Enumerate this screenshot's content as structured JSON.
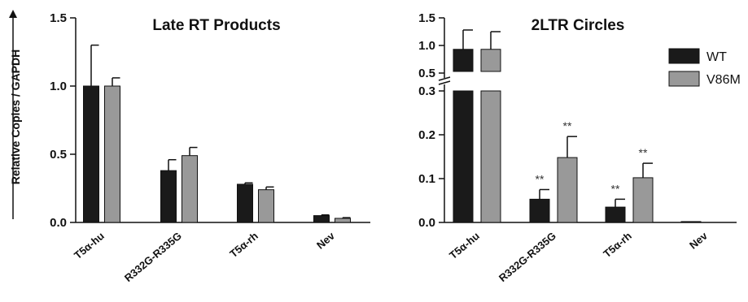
{
  "colors": {
    "wt": "#1a1a1a",
    "v86m": "#999999",
    "axis": "#111111"
  },
  "legend": {
    "items": [
      {
        "label": "WT",
        "color": "#1a1a1a"
      },
      {
        "label": "V86M",
        "color": "#999999"
      }
    ],
    "placement": "top-right of right panel"
  },
  "y_axis_label": "Relative Copies / GAPDH",
  "chart_data": [
    {
      "type": "bar",
      "title": "Late RT Products",
      "ylabel": "Relative Copies / GAPDH",
      "categories": [
        "T5α-hu",
        "R332G-R335G",
        "T5α-rh",
        "Nev"
      ],
      "ylim": [
        0,
        1.5
      ],
      "yticks": [
        "0.0",
        "0.5",
        "1.0",
        "1.5"
      ],
      "series": [
        {
          "name": "WT",
          "values": [
            1.0,
            0.38,
            0.28,
            0.05
          ],
          "errors": [
            0.3,
            0.08,
            0.01,
            0.005
          ]
        },
        {
          "name": "V86M",
          "values": [
            1.0,
            0.49,
            0.24,
            0.03
          ],
          "errors": [
            0.06,
            0.06,
            0.02,
            0.005
          ]
        }
      ]
    },
    {
      "type": "bar",
      "title": "2LTR Circles",
      "categories": [
        "T5α-hu",
        "R332G-R335G",
        "T5α-rh",
        "Nev"
      ],
      "ylim": [
        0,
        1.5
      ],
      "axis_break": [
        0.3,
        0.5
      ],
      "yticks_lower": [
        "0.0",
        "0.1",
        "0.2",
        "0.3"
      ],
      "yticks_upper": [
        "0.5",
        "1.0",
        "1.5"
      ],
      "series": [
        {
          "name": "WT",
          "values": [
            0.93,
            0.053,
            0.035,
            0.002
          ],
          "errors": [
            0.35,
            0.022,
            0.018,
            0.0
          ],
          "annotations": [
            "",
            "**",
            "**",
            ""
          ]
        },
        {
          "name": "V86M",
          "values": [
            0.93,
            0.148,
            0.102,
            0.0
          ],
          "errors": [
            0.32,
            0.048,
            0.033,
            0.0
          ],
          "annotations": [
            "",
            "**",
            "**",
            ""
          ]
        }
      ]
    }
  ]
}
